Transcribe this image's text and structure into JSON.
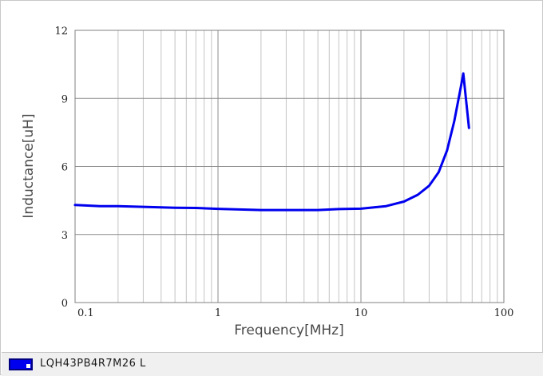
{
  "chart_data": {
    "type": "line",
    "xlabel": "Frequency[MHz]",
    "ylabel": "Inductance[uH]",
    "x_scale": "log",
    "xlim": [
      0.1,
      100
    ],
    "ylim": [
      0,
      12
    ],
    "x_ticks": [
      {
        "value": 0.1,
        "label": "0.1"
      },
      {
        "value": 1,
        "label": "1"
      },
      {
        "value": 10,
        "label": "10"
      },
      {
        "value": 100,
        "label": "100"
      }
    ],
    "y_ticks": [
      {
        "value": 0,
        "label": "0"
      },
      {
        "value": 3,
        "label": "3"
      },
      {
        "value": 6,
        "label": "6"
      },
      {
        "value": 9,
        "label": "9"
      },
      {
        "value": 12,
        "label": "12"
      }
    ],
    "grid": true,
    "legend_position": "bottom-left",
    "series": [
      {
        "name": "LQH43PB4R7M26  L",
        "color": "#0000ee",
        "x": [
          0.1,
          0.15,
          0.2,
          0.3,
          0.5,
          0.7,
          1,
          1.5,
          2,
          3,
          5,
          7,
          10,
          15,
          20,
          25,
          30,
          35,
          40,
          45,
          50,
          52,
          57
        ],
        "y": [
          4.3,
          4.25,
          4.25,
          4.22,
          4.18,
          4.17,
          4.13,
          4.1,
          4.08,
          4.08,
          4.08,
          4.12,
          4.14,
          4.25,
          4.45,
          4.75,
          5.15,
          5.75,
          6.7,
          8.0,
          9.5,
          10.1,
          7.7
        ]
      }
    ]
  }
}
